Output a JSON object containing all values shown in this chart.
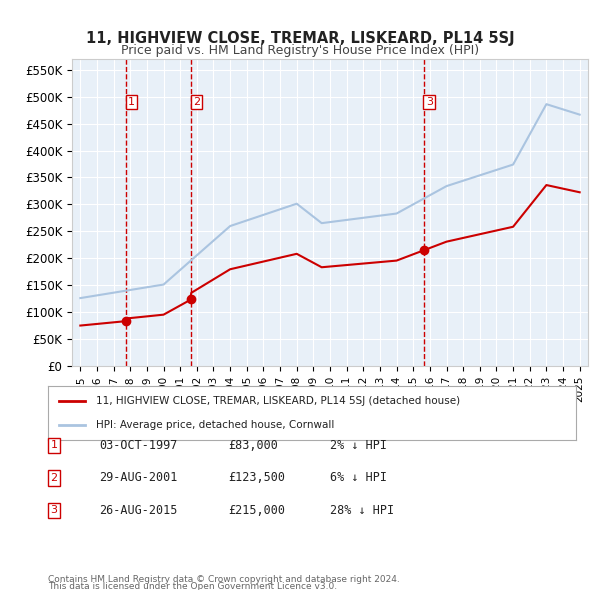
{
  "title": "11, HIGHVIEW CLOSE, TREMAR, LISKEARD, PL14 5SJ",
  "subtitle": "Price paid vs. HM Land Registry's House Price Index (HPI)",
  "ylabel": "",
  "ylim": [
    0,
    570000
  ],
  "yticks": [
    0,
    50000,
    100000,
    150000,
    200000,
    250000,
    300000,
    350000,
    400000,
    450000,
    500000,
    550000
  ],
  "ytick_labels": [
    "£0",
    "£50K",
    "£100K",
    "£150K",
    "£200K",
    "£250K",
    "£300K",
    "£350K",
    "£400K",
    "£450K",
    "£500K",
    "£550K"
  ],
  "background_color": "#e8f0f8",
  "plot_bg_color": "#e8f0f8",
  "hpi_color": "#aac4e0",
  "price_color": "#cc0000",
  "sale_dot_color": "#cc0000",
  "vline_color": "#cc0000",
  "transactions": [
    {
      "date": 1997.75,
      "price": 83000,
      "label": "1"
    },
    {
      "date": 2001.66,
      "price": 123500,
      "label": "2"
    },
    {
      "date": 2015.65,
      "price": 215000,
      "label": "3"
    }
  ],
  "legend_property_label": "11, HIGHVIEW CLOSE, TREMAR, LISKEARD, PL14 5SJ (detached house)",
  "legend_hpi_label": "HPI: Average price, detached house, Cornwall",
  "table_rows": [
    {
      "num": "1",
      "date": "03-OCT-1997",
      "price": "£83,000",
      "hpi": "2% ↓ HPI"
    },
    {
      "num": "2",
      "date": "29-AUG-2001",
      "price": "£123,500",
      "hpi": "6% ↓ HPI"
    },
    {
      "num": "3",
      "date": "26-AUG-2015",
      "price": "£215,000",
      "hpi": "28% ↓ HPI"
    }
  ],
  "footer_line1": "Contains HM Land Registry data © Crown copyright and database right 2024.",
  "footer_line2": "This data is licensed under the Open Government Licence v3.0.",
  "xlim_start": 1994.5,
  "xlim_end": 2025.5
}
